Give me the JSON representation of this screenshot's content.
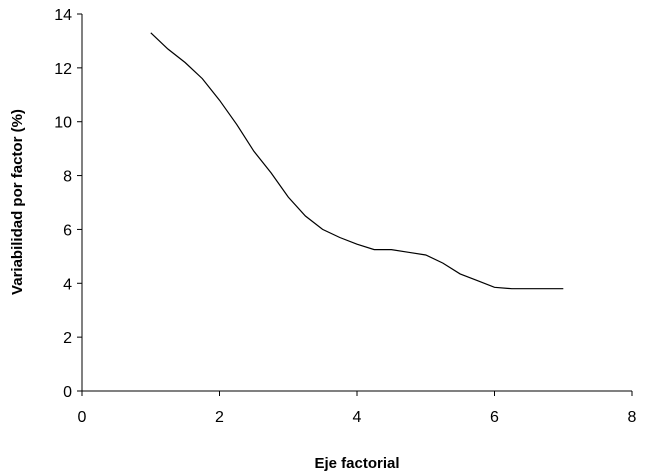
{
  "chart_data": {
    "type": "line",
    "xlabel": "Eje factorial",
    "ylabel": "Variabilidad por factor (%)",
    "xlim": [
      0,
      8
    ],
    "ylim": [
      0,
      14
    ],
    "xticks": [
      "0",
      "2",
      "4",
      "6",
      "8"
    ],
    "yticks": [
      "0",
      "2",
      "4",
      "6",
      "8",
      "10",
      "12",
      "14"
    ],
    "grid": false,
    "legend": "none",
    "series": [
      {
        "x": [
          1.0,
          1.25,
          1.5,
          1.75,
          2.0,
          2.25,
          2.5,
          2.75,
          3.0,
          3.25,
          3.5,
          3.75,
          4.0,
          4.25,
          4.5,
          4.75,
          5.0,
          5.25,
          5.5,
          5.75,
          6.0,
          6.25,
          6.5,
          6.75,
          7.0
        ],
        "y": [
          13.3,
          12.7,
          12.2,
          11.6,
          10.8,
          9.9,
          8.9,
          8.1,
          7.2,
          6.5,
          6.0,
          5.7,
          5.45,
          5.25,
          5.25,
          5.15,
          5.05,
          4.75,
          4.35,
          4.1,
          3.85,
          3.8,
          3.8,
          3.8,
          3.8
        ]
      }
    ]
  }
}
